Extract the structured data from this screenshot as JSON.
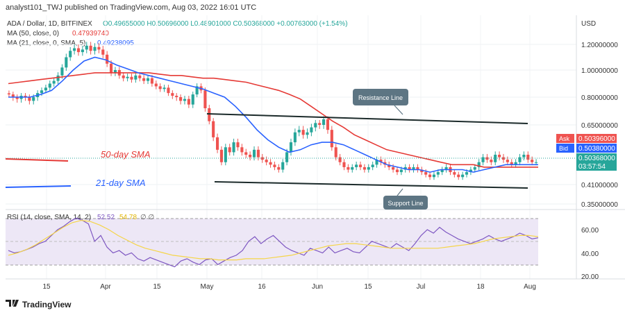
{
  "header": {
    "published": "analyst101_TWJ published on TradingView.com, Aug 03, 2022 16:01 UTC",
    "symbol": "ADA / Dollar, 1D, BITFINEX",
    "ohlc": "O0.49655000 H0.50696000 L0.48901000 C0.50368000 +0.00763000 (+1.54%)",
    "ma50_label": "MA (50, close, 0)",
    "ma50_value": "0.47939740",
    "ma21_label": "MA (21, close, 0, SMA, 5)",
    "ma21_value": "0.49238095",
    "rsi_label": "RSI (14, close, SMA, 14, 2)",
    "rsi_value": "52.52",
    "rsi_sma_value": "54.78",
    "rsi_extra": "∅  ∅"
  },
  "price_axis": {
    "currency": "USD",
    "ticks": [
      "1.20000000",
      "1.00000000",
      "0.80000000",
      "0.65000000",
      "0.41000000",
      "0.35000000"
    ],
    "ask_label": "Ask",
    "ask_value": "0.50396000",
    "bid_label": "Bid",
    "bid_value": "0.50380000",
    "last_value": "0.50368000",
    "countdown": "03:57:54"
  },
  "rsi_axis": {
    "ticks": [
      "60.00",
      "40.00",
      "20.00"
    ]
  },
  "time_axis": {
    "ticks": [
      "15",
      "Apr",
      "15",
      "May",
      "16",
      "Jun",
      "15",
      "Jul",
      "18",
      "Aug"
    ]
  },
  "annotations": {
    "resistance": "Resistance Line",
    "support": "Support Line",
    "sma50": "50-day SMA",
    "sma21": "21-day SMA"
  },
  "footer": {
    "brand": "TradingView"
  },
  "colors": {
    "up": "#26a69a",
    "down": "#ef5350",
    "ma50": "#e53935",
    "ma21": "#2962ff",
    "rsi": "#7e57c2",
    "rsi_sma": "#f5d547",
    "label_bg": "#5d7583",
    "trend": "#1b2a2a"
  },
  "chart_data": [
    {
      "type": "candlestick",
      "title": "ADA / Dollar, 1D, BITFINEX",
      "ylabel": "USD",
      "xlabel": "",
      "ylim": [
        0.33,
        1.4
      ],
      "x_ticks": [
        "15",
        "Apr",
        "15",
        "May",
        "16",
        "Jun",
        "15",
        "Jul",
        "18",
        "Aug"
      ],
      "close": [
        0.82,
        0.8,
        0.79,
        0.81,
        0.8,
        0.78,
        0.8,
        0.83,
        0.85,
        0.87,
        0.9,
        0.92,
        0.96,
        1.02,
        1.1,
        1.15,
        1.17,
        1.14,
        1.16,
        1.19,
        1.15,
        1.18,
        1.16,
        1.12,
        1.05,
        0.98,
        1.0,
        0.96,
        0.94,
        0.95,
        0.93,
        0.96,
        0.94,
        0.92,
        0.94,
        0.9,
        0.88,
        0.86,
        0.87,
        0.83,
        0.81,
        0.8,
        0.78,
        0.79,
        0.76,
        0.82,
        0.88,
        0.85,
        0.74,
        0.67,
        0.6,
        0.55,
        0.5,
        0.56,
        0.54,
        0.58,
        0.56,
        0.54,
        0.53,
        0.52,
        0.55,
        0.52,
        0.51,
        0.5,
        0.49,
        0.48,
        0.47,
        0.5,
        0.54,
        0.58,
        0.62,
        0.63,
        0.61,
        0.62,
        0.64,
        0.66,
        0.65,
        0.68,
        0.63,
        0.56,
        0.52,
        0.5,
        0.48,
        0.47,
        0.48,
        0.49,
        0.48,
        0.47,
        0.48,
        0.49,
        0.51,
        0.5,
        0.49,
        0.48,
        0.47,
        0.46,
        0.47,
        0.48,
        0.47,
        0.48,
        0.47,
        0.46,
        0.45,
        0.44,
        0.45,
        0.46,
        0.47,
        0.48,
        0.46,
        0.45,
        0.44,
        0.45,
        0.46,
        0.47,
        0.48,
        0.5,
        0.52,
        0.51,
        0.5,
        0.53,
        0.52,
        0.51,
        0.5,
        0.49,
        0.5,
        0.52,
        0.53,
        0.51,
        0.5,
        0.5
      ],
      "series": [
        {
          "name": "MA (50, close, 0)",
          "values": [
            0.9,
            0.91,
            0.92,
            0.93,
            0.94,
            0.95,
            0.96,
            0.97,
            0.98,
            0.98,
            0.98,
            0.98,
            0.98,
            0.98,
            0.97,
            0.96,
            0.96,
            0.95,
            0.94,
            0.94,
            0.93,
            0.92,
            0.91,
            0.89,
            0.87,
            0.85,
            0.82,
            0.79,
            0.75,
            0.71,
            0.67,
            0.64,
            0.61,
            0.59,
            0.57,
            0.55,
            0.54,
            0.53,
            0.52,
            0.51,
            0.5,
            0.49,
            0.49,
            0.49,
            0.48,
            0.48,
            0.48,
            0.48,
            0.48,
            0.48
          ]
        },
        {
          "name": "MA (21, close, 0, SMA, 5)",
          "values": [
            0.8,
            0.8,
            0.8,
            0.82,
            0.85,
            0.92,
            1.0,
            1.07,
            1.1,
            1.08,
            1.04,
            1.01,
            0.98,
            0.96,
            0.94,
            0.92,
            0.9,
            0.88,
            0.86,
            0.83,
            0.8,
            0.75,
            0.69,
            0.63,
            0.59,
            0.56,
            0.54,
            0.55,
            0.57,
            0.58,
            0.58,
            0.57,
            0.55,
            0.53,
            0.51,
            0.49,
            0.48,
            0.47,
            0.47,
            0.46,
            0.47,
            0.47,
            0.47,
            0.46,
            0.47,
            0.48,
            0.49,
            0.49,
            0.49,
            0.49
          ]
        }
      ],
      "annotations": [
        "Resistance Line",
        "Support Line",
        "50-day SMA",
        "21-day SMA"
      ]
    },
    {
      "type": "line",
      "title": "RSI (14, close, SMA, 14, 2)",
      "ylim": [
        20,
        70
      ],
      "y_ticks": [
        60,
        40,
        20
      ],
      "bands": [
        30,
        70
      ],
      "series": [
        {
          "name": "RSI",
          "values": [
            42,
            40,
            41,
            43,
            45,
            48,
            50,
            55,
            60,
            63,
            67,
            70,
            68,
            65,
            50,
            55,
            45,
            40,
            42,
            38,
            40,
            35,
            33,
            36,
            34,
            32,
            30,
            28,
            33,
            35,
            32,
            30,
            34,
            35,
            30,
            33,
            36,
            38,
            42,
            50,
            54,
            48,
            52,
            55,
            50,
            45,
            42,
            40,
            38,
            44,
            42,
            40,
            45,
            40,
            42,
            44,
            41,
            40,
            45,
            50,
            48,
            46,
            44,
            48,
            45,
            42,
            48,
            55,
            60,
            57,
            62,
            58,
            55,
            52,
            50,
            48,
            50,
            52,
            55,
            52,
            50,
            52,
            54,
            57,
            55,
            52,
            53
          ]
        },
        {
          "name": "SMA",
          "values": [
            38,
            40,
            43,
            47,
            52,
            57,
            62,
            66,
            68,
            67,
            64,
            60,
            55,
            51,
            47,
            44,
            42,
            40,
            38,
            37,
            36,
            35,
            35,
            34,
            34,
            34,
            35,
            35,
            35,
            36,
            37,
            38,
            40,
            42,
            44,
            46,
            47,
            48,
            48,
            47,
            46,
            45,
            44,
            44,
            44,
            44,
            44,
            44,
            45,
            46,
            47,
            48,
            50,
            52,
            53,
            54,
            55,
            55,
            54
          ]
        }
      ]
    }
  ]
}
